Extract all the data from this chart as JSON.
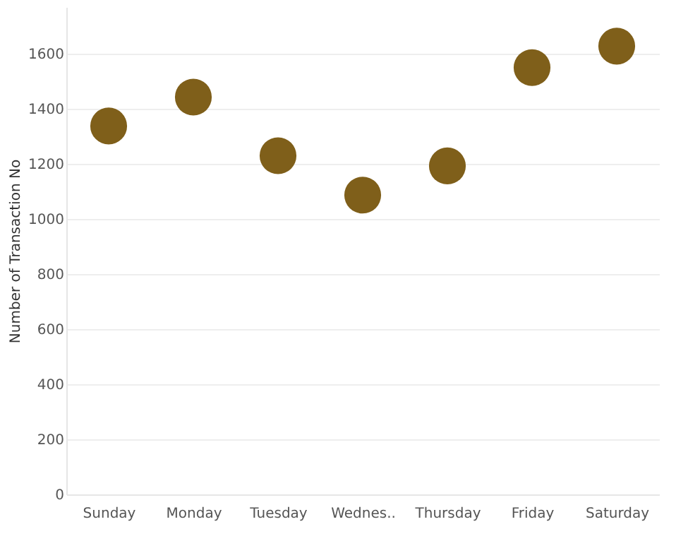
{
  "chart_data": {
    "type": "scatter",
    "ylabel": "Number of Transaction No",
    "categories": [
      "Sunday",
      "Monday",
      "Tuesday",
      "Wednes..",
      "Thursday",
      "Friday",
      "Saturday"
    ],
    "values": [
      1338,
      1443,
      1230,
      1087,
      1193,
      1550,
      1628
    ],
    "color": "#7f5f1a",
    "marker": "circle",
    "ylim": [
      0,
      1770
    ],
    "yticks": [
      0,
      200,
      400,
      600,
      800,
      1000,
      1200,
      1400,
      1600
    ],
    "grid": "y"
  }
}
